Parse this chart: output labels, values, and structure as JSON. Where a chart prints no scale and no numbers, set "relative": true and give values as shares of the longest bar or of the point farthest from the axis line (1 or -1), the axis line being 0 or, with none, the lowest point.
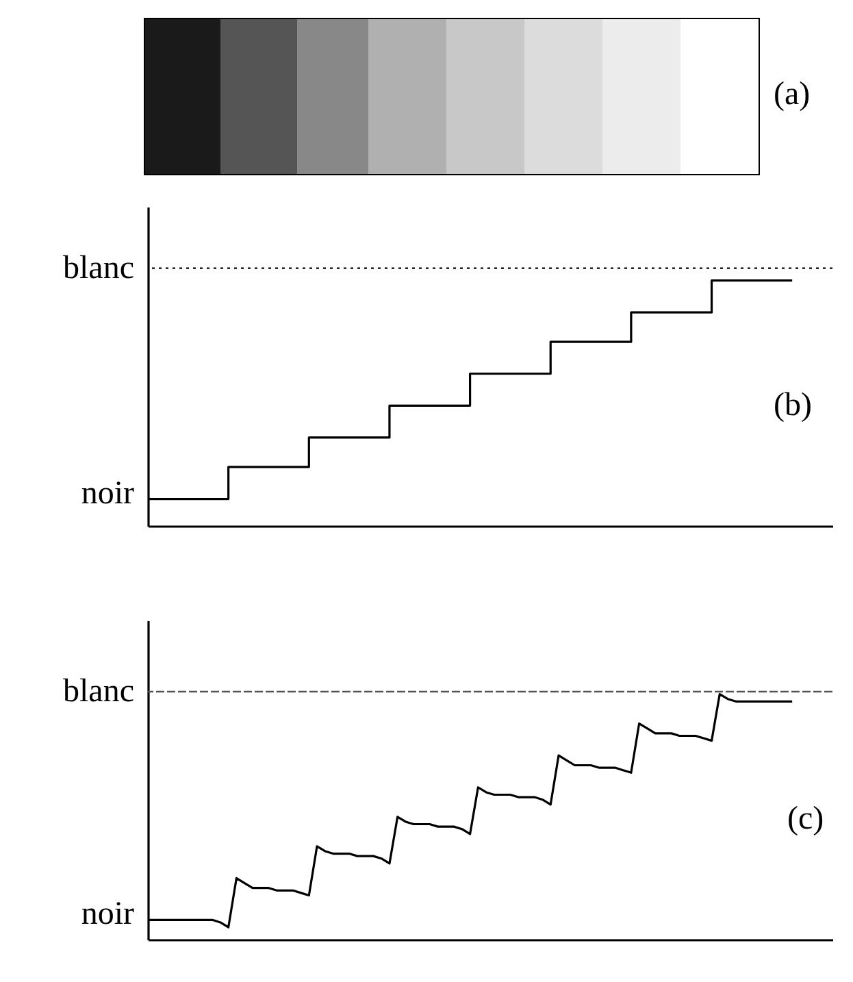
{
  "chart_data": [
    {
      "type": "other",
      "annotations": [
        "(a)"
      ]
    },
    {
      "type": "step",
      "categories": [
        null,
        null,
        null,
        null,
        null,
        null,
        null,
        null,
        null
      ],
      "relative": true,
      "series": [
        {
          "color": "#000000",
          "values": [
            0.11,
            0.24,
            0.36,
            0.49,
            0.62,
            0.75,
            0.87,
            1,
            1
          ]
        }
      ],
      "ref_lines": [
        {
          "axis": "y",
          "value": 1.05,
          "line_style": "dotted",
          "color": "#000000",
          "label": "blanc"
        }
      ],
      "annotations": [
        "(b)",
        "noir"
      ]
    },
    {
      "type": "line",
      "categories": [
        null,
        null,
        null,
        null,
        null,
        null,
        null,
        null,
        null,
        null,
        null,
        null,
        null,
        null,
        null,
        null,
        null,
        null,
        null,
        null,
        null,
        null,
        null,
        null,
        null,
        null,
        null,
        null,
        null,
        null,
        null,
        null,
        null,
        null,
        null,
        null,
        null,
        null,
        null,
        null,
        null,
        null,
        null,
        null,
        null,
        null,
        null,
        null,
        null,
        null,
        null,
        null,
        null,
        null,
        null,
        null,
        null,
        null,
        null,
        null,
        null,
        null,
        null,
        null,
        null,
        null,
        null,
        null,
        null,
        null,
        null,
        null,
        null,
        null,
        null,
        null,
        null,
        null,
        null,
        null,
        null
      ],
      "relative": true,
      "series": [
        {
          "color": "#000000",
          "values": [
            0.08,
            0.08,
            0.08,
            0.08,
            0.08,
            0.08,
            0.08,
            0.08,
            0.08,
            0.07,
            0.05,
            0.25,
            0.23,
            0.21,
            0.21,
            0.21,
            0.2,
            0.2,
            0.2,
            0.19,
            0.18,
            0.38,
            0.36,
            0.35,
            0.35,
            0.35,
            0.34,
            0.34,
            0.34,
            0.33,
            0.31,
            0.5,
            0.48,
            0.47,
            0.47,
            0.47,
            0.46,
            0.46,
            0.46,
            0.45,
            0.43,
            0.62,
            0.6,
            0.59,
            0.59,
            0.59,
            0.58,
            0.58,
            0.58,
            0.57,
            0.55,
            0.75,
            0.73,
            0.71,
            0.71,
            0.71,
            0.7,
            0.7,
            0.7,
            0.69,
            0.68,
            0.88,
            0.86,
            0.84,
            0.84,
            0.84,
            0.83,
            0.83,
            0.83,
            0.82,
            0.81,
            1,
            0.98,
            0.97,
            0.97,
            0.97,
            0.97,
            0.97,
            0.97,
            0.97,
            0.97
          ]
        }
      ],
      "ref_lines": [
        {
          "axis": "y",
          "value": 1.01,
          "line_style": "dashed",
          "color": "#555555",
          "label": "blanc"
        }
      ],
      "annotations": [
        "(c)",
        "noir"
      ]
    }
  ]
}
